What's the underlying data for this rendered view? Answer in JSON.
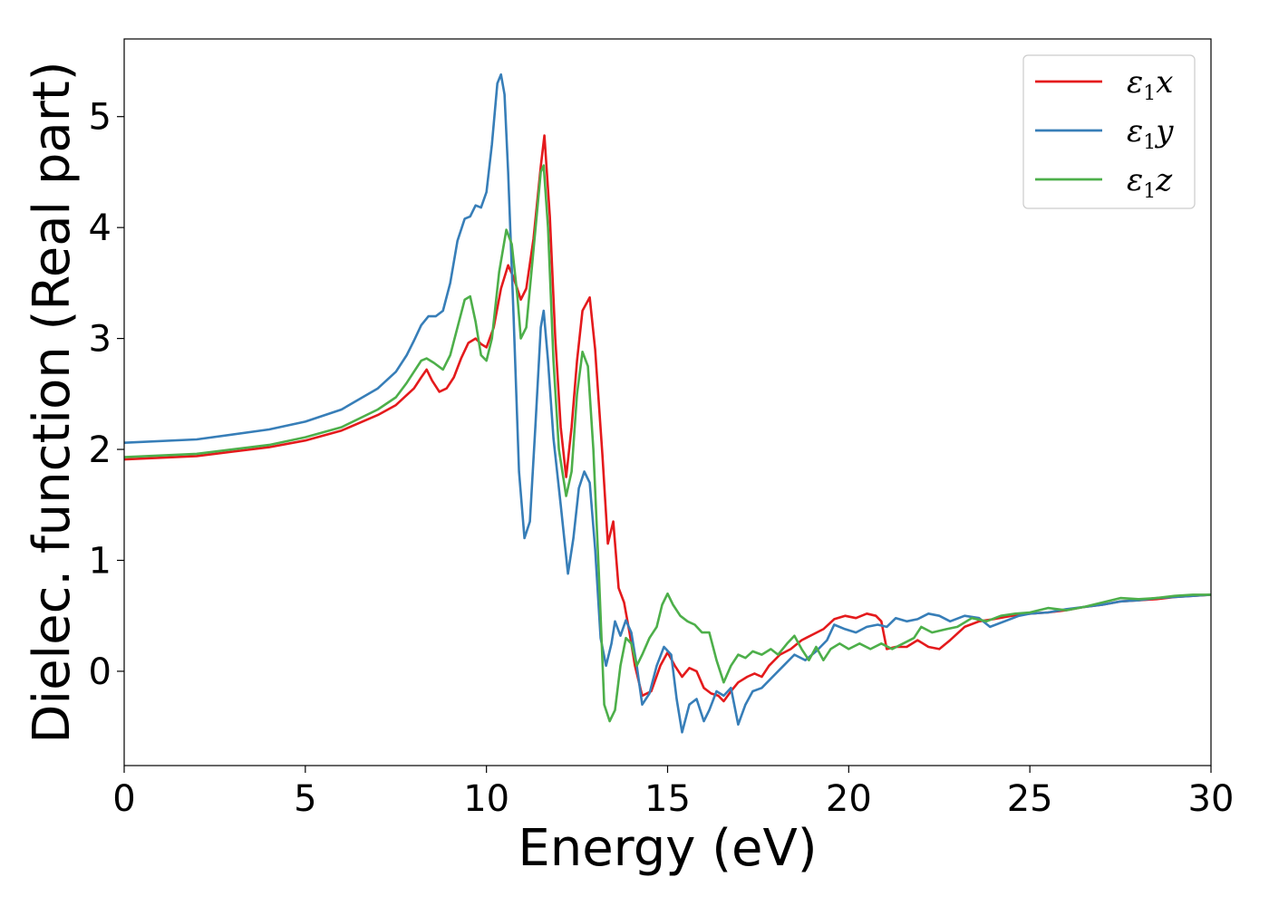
{
  "chart_data": {
    "type": "line",
    "title": "",
    "xlabel": "Energy (eV)",
    "ylabel": "Dielec. function (Real part)",
    "xlim": [
      0,
      30
    ],
    "ylim": [
      -0.85,
      5.7
    ],
    "x_ticks": [
      0,
      5,
      10,
      15,
      20,
      25,
      30
    ],
    "y_ticks": [
      0,
      1,
      2,
      3,
      4,
      5
    ],
    "grid": false,
    "legend_position": "top-right",
    "series": [
      {
        "name": "ε1x",
        "legend_symbol": "ε",
        "legend_sub": "1",
        "legend_var": "x",
        "color": "#e41a1c",
        "points": [
          [
            0,
            1.91
          ],
          [
            2,
            1.94
          ],
          [
            4,
            2.02
          ],
          [
            5,
            2.08
          ],
          [
            6,
            2.17
          ],
          [
            7,
            2.31
          ],
          [
            7.5,
            2.4
          ],
          [
            8,
            2.55
          ],
          [
            8.2,
            2.65
          ],
          [
            8.35,
            2.72
          ],
          [
            8.5,
            2.62
          ],
          [
            8.7,
            2.52
          ],
          [
            8.9,
            2.55
          ],
          [
            9.1,
            2.65
          ],
          [
            9.3,
            2.82
          ],
          [
            9.5,
            2.96
          ],
          [
            9.7,
            3.0
          ],
          [
            9.85,
            2.95
          ],
          [
            10.0,
            2.92
          ],
          [
            10.2,
            3.1
          ],
          [
            10.4,
            3.45
          ],
          [
            10.6,
            3.66
          ],
          [
            10.75,
            3.55
          ],
          [
            10.95,
            3.35
          ],
          [
            11.1,
            3.45
          ],
          [
            11.3,
            3.9
          ],
          [
            11.5,
            4.55
          ],
          [
            11.6,
            4.83
          ],
          [
            11.75,
            4.1
          ],
          [
            11.9,
            3.0
          ],
          [
            12.05,
            2.2
          ],
          [
            12.2,
            1.75
          ],
          [
            12.35,
            2.2
          ],
          [
            12.5,
            2.8
          ],
          [
            12.65,
            3.25
          ],
          [
            12.85,
            3.37
          ],
          [
            13.0,
            2.9
          ],
          [
            13.2,
            1.95
          ],
          [
            13.35,
            1.15
          ],
          [
            13.5,
            1.35
          ],
          [
            13.65,
            0.75
          ],
          [
            13.8,
            0.62
          ],
          [
            13.95,
            0.35
          ],
          [
            14.1,
            0.05
          ],
          [
            14.3,
            -0.22
          ],
          [
            14.55,
            -0.18
          ],
          [
            14.8,
            0.05
          ],
          [
            15.0,
            0.17
          ],
          [
            15.2,
            0.05
          ],
          [
            15.4,
            -0.05
          ],
          [
            15.6,
            0.03
          ],
          [
            15.8,
            0.0
          ],
          [
            16.0,
            -0.15
          ],
          [
            16.2,
            -0.2
          ],
          [
            16.4,
            -0.22
          ],
          [
            16.55,
            -0.27
          ],
          [
            16.75,
            -0.18
          ],
          [
            16.95,
            -0.1
          ],
          [
            17.2,
            -0.05
          ],
          [
            17.4,
            -0.02
          ],
          [
            17.6,
            -0.05
          ],
          [
            17.8,
            0.05
          ],
          [
            18.1,
            0.15
          ],
          [
            18.4,
            0.2
          ],
          [
            18.7,
            0.28
          ],
          [
            19.0,
            0.33
          ],
          [
            19.3,
            0.38
          ],
          [
            19.6,
            0.47
          ],
          [
            19.9,
            0.5
          ],
          [
            20.2,
            0.48
          ],
          [
            20.5,
            0.52
          ],
          [
            20.75,
            0.5
          ],
          [
            20.9,
            0.45
          ],
          [
            21.05,
            0.2
          ],
          [
            21.3,
            0.22
          ],
          [
            21.6,
            0.22
          ],
          [
            21.9,
            0.28
          ],
          [
            22.2,
            0.22
          ],
          [
            22.5,
            0.2
          ],
          [
            22.8,
            0.28
          ],
          [
            23.2,
            0.4
          ],
          [
            23.6,
            0.45
          ],
          [
            24.0,
            0.47
          ],
          [
            24.5,
            0.5
          ],
          [
            25.0,
            0.52
          ],
          [
            25.5,
            0.53
          ],
          [
            26.0,
            0.55
          ],
          [
            26.5,
            0.58
          ],
          [
            27.0,
            0.6
          ],
          [
            27.5,
            0.63
          ],
          [
            28.0,
            0.64
          ],
          [
            28.5,
            0.65
          ],
          [
            29.0,
            0.67
          ],
          [
            29.5,
            0.68
          ],
          [
            30,
            0.69
          ]
        ]
      },
      {
        "name": "ε1y",
        "legend_symbol": "ε",
        "legend_sub": "1",
        "legend_var": "y",
        "color": "#377eb8",
        "points": [
          [
            0,
            2.06
          ],
          [
            2,
            2.09
          ],
          [
            4,
            2.18
          ],
          [
            5,
            2.25
          ],
          [
            6,
            2.36
          ],
          [
            7,
            2.55
          ],
          [
            7.5,
            2.7
          ],
          [
            7.8,
            2.85
          ],
          [
            8.0,
            2.98
          ],
          [
            8.2,
            3.12
          ],
          [
            8.4,
            3.2
          ],
          [
            8.6,
            3.2
          ],
          [
            8.8,
            3.25
          ],
          [
            9.0,
            3.5
          ],
          [
            9.2,
            3.88
          ],
          [
            9.4,
            4.08
          ],
          [
            9.55,
            4.1
          ],
          [
            9.7,
            4.2
          ],
          [
            9.85,
            4.18
          ],
          [
            10.0,
            4.32
          ],
          [
            10.15,
            4.75
          ],
          [
            10.3,
            5.3
          ],
          [
            10.4,
            5.38
          ],
          [
            10.5,
            5.2
          ],
          [
            10.6,
            4.5
          ],
          [
            10.75,
            3.2
          ],
          [
            10.9,
            1.8
          ],
          [
            11.05,
            1.2
          ],
          [
            11.2,
            1.35
          ],
          [
            11.35,
            2.2
          ],
          [
            11.5,
            3.1
          ],
          [
            11.58,
            3.25
          ],
          [
            11.7,
            2.8
          ],
          [
            11.85,
            2.1
          ],
          [
            12.05,
            1.5
          ],
          [
            12.25,
            0.88
          ],
          [
            12.4,
            1.2
          ],
          [
            12.55,
            1.65
          ],
          [
            12.7,
            1.8
          ],
          [
            12.85,
            1.7
          ],
          [
            13.0,
            1.1
          ],
          [
            13.15,
            0.3
          ],
          [
            13.3,
            0.05
          ],
          [
            13.45,
            0.25
          ],
          [
            13.55,
            0.45
          ],
          [
            13.7,
            0.32
          ],
          [
            13.85,
            0.46
          ],
          [
            14.0,
            0.35
          ],
          [
            14.15,
            0.05
          ],
          [
            14.3,
            -0.3
          ],
          [
            14.5,
            -0.2
          ],
          [
            14.7,
            0.05
          ],
          [
            14.9,
            0.22
          ],
          [
            15.1,
            0.15
          ],
          [
            15.25,
            -0.25
          ],
          [
            15.4,
            -0.55
          ],
          [
            15.6,
            -0.3
          ],
          [
            15.8,
            -0.25
          ],
          [
            16.0,
            -0.45
          ],
          [
            16.15,
            -0.35
          ],
          [
            16.35,
            -0.18
          ],
          [
            16.55,
            -0.22
          ],
          [
            16.75,
            -0.15
          ],
          [
            16.95,
            -0.48
          ],
          [
            17.15,
            -0.3
          ],
          [
            17.35,
            -0.18
          ],
          [
            17.6,
            -0.15
          ],
          [
            17.9,
            -0.05
          ],
          [
            18.2,
            0.05
          ],
          [
            18.5,
            0.15
          ],
          [
            18.8,
            0.1
          ],
          [
            19.1,
            0.18
          ],
          [
            19.4,
            0.28
          ],
          [
            19.6,
            0.42
          ],
          [
            19.9,
            0.38
          ],
          [
            20.2,
            0.35
          ],
          [
            20.5,
            0.4
          ],
          [
            20.8,
            0.42
          ],
          [
            21.05,
            0.4
          ],
          [
            21.3,
            0.48
          ],
          [
            21.6,
            0.45
          ],
          [
            21.9,
            0.47
          ],
          [
            22.2,
            0.52
          ],
          [
            22.5,
            0.5
          ],
          [
            22.8,
            0.45
          ],
          [
            23.2,
            0.5
          ],
          [
            23.6,
            0.48
          ],
          [
            23.9,
            0.4
          ],
          [
            24.3,
            0.45
          ],
          [
            24.7,
            0.5
          ],
          [
            25.0,
            0.52
          ],
          [
            25.5,
            0.53
          ],
          [
            26.0,
            0.56
          ],
          [
            26.5,
            0.58
          ],
          [
            27.0,
            0.6
          ],
          [
            27.5,
            0.63
          ],
          [
            28.0,
            0.64
          ],
          [
            28.5,
            0.66
          ],
          [
            29.0,
            0.67
          ],
          [
            29.5,
            0.68
          ],
          [
            30,
            0.69
          ]
        ]
      },
      {
        "name": "ε1z",
        "legend_symbol": "ε",
        "legend_sub": "1",
        "legend_var": "z",
        "color": "#4daf4a",
        "points": [
          [
            0,
            1.93
          ],
          [
            2,
            1.96
          ],
          [
            4,
            2.04
          ],
          [
            5,
            2.11
          ],
          [
            6,
            2.2
          ],
          [
            7,
            2.36
          ],
          [
            7.5,
            2.47
          ],
          [
            7.8,
            2.6
          ],
          [
            8.0,
            2.7
          ],
          [
            8.2,
            2.8
          ],
          [
            8.35,
            2.82
          ],
          [
            8.55,
            2.78
          ],
          [
            8.8,
            2.72
          ],
          [
            9.0,
            2.85
          ],
          [
            9.2,
            3.1
          ],
          [
            9.4,
            3.35
          ],
          [
            9.55,
            3.38
          ],
          [
            9.7,
            3.15
          ],
          [
            9.85,
            2.85
          ],
          [
            10.0,
            2.8
          ],
          [
            10.15,
            3.0
          ],
          [
            10.35,
            3.6
          ],
          [
            10.55,
            3.98
          ],
          [
            10.7,
            3.85
          ],
          [
            10.85,
            3.4
          ],
          [
            10.95,
            3.0
          ],
          [
            11.1,
            3.1
          ],
          [
            11.3,
            3.8
          ],
          [
            11.5,
            4.5
          ],
          [
            11.58,
            4.56
          ],
          [
            11.7,
            4.0
          ],
          [
            11.85,
            2.8
          ],
          [
            12.0,
            2.0
          ],
          [
            12.2,
            1.58
          ],
          [
            12.35,
            1.8
          ],
          [
            12.5,
            2.5
          ],
          [
            12.65,
            2.88
          ],
          [
            12.8,
            2.75
          ],
          [
            12.95,
            2.0
          ],
          [
            13.1,
            0.9
          ],
          [
            13.25,
            -0.3
          ],
          [
            13.4,
            -0.45
          ],
          [
            13.55,
            -0.35
          ],
          [
            13.7,
            0.05
          ],
          [
            13.85,
            0.3
          ],
          [
            14.0,
            0.25
          ],
          [
            14.15,
            0.05
          ],
          [
            14.3,
            0.15
          ],
          [
            14.5,
            0.3
          ],
          [
            14.7,
            0.4
          ],
          [
            14.85,
            0.6
          ],
          [
            15.0,
            0.7
          ],
          [
            15.15,
            0.6
          ],
          [
            15.35,
            0.5
          ],
          [
            15.55,
            0.45
          ],
          [
            15.75,
            0.42
          ],
          [
            15.95,
            0.35
          ],
          [
            16.15,
            0.35
          ],
          [
            16.35,
            0.1
          ],
          [
            16.55,
            -0.1
          ],
          [
            16.75,
            0.05
          ],
          [
            16.95,
            0.15
          ],
          [
            17.15,
            0.12
          ],
          [
            17.35,
            0.18
          ],
          [
            17.6,
            0.15
          ],
          [
            17.85,
            0.2
          ],
          [
            18.05,
            0.15
          ],
          [
            18.3,
            0.25
          ],
          [
            18.5,
            0.32
          ],
          [
            18.7,
            0.2
          ],
          [
            18.9,
            0.1
          ],
          [
            19.1,
            0.22
          ],
          [
            19.3,
            0.1
          ],
          [
            19.5,
            0.2
          ],
          [
            19.75,
            0.25
          ],
          [
            20.0,
            0.2
          ],
          [
            20.3,
            0.25
          ],
          [
            20.6,
            0.2
          ],
          [
            20.9,
            0.25
          ],
          [
            21.2,
            0.2
          ],
          [
            21.5,
            0.25
          ],
          [
            21.8,
            0.3
          ],
          [
            22.0,
            0.4
          ],
          [
            22.3,
            0.35
          ],
          [
            22.7,
            0.38
          ],
          [
            23.0,
            0.4
          ],
          [
            23.4,
            0.48
          ],
          [
            23.8,
            0.45
          ],
          [
            24.2,
            0.5
          ],
          [
            24.6,
            0.52
          ],
          [
            25.0,
            0.53
          ],
          [
            25.5,
            0.57
          ],
          [
            26.0,
            0.55
          ],
          [
            26.5,
            0.58
          ],
          [
            27.0,
            0.62
          ],
          [
            27.5,
            0.66
          ],
          [
            28.0,
            0.65
          ],
          [
            28.5,
            0.66
          ],
          [
            29.0,
            0.68
          ],
          [
            29.5,
            0.69
          ],
          [
            30,
            0.69
          ]
        ]
      }
    ]
  }
}
